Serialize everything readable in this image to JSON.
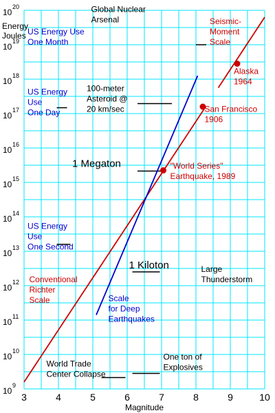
{
  "chart_data": {
    "type": "line",
    "xlabel": "Magnitude",
    "ylabel_lines": [
      "Energy",
      "Joules"
    ],
    "xlim": [
      3,
      10
    ],
    "y_log_exponent_range": [
      9,
      20
    ],
    "x_ticks": [
      "3",
      "4",
      "5",
      "6",
      "7",
      "8",
      "9",
      "10"
    ],
    "y_ticks": [
      {
        "base": "10",
        "exp": "9"
      },
      {
        "base": "10",
        "exp": "10"
      },
      {
        "base": "10",
        "exp": "11"
      },
      {
        "base": "10",
        "exp": "12"
      },
      {
        "base": "10",
        "exp": "13"
      },
      {
        "base": "10",
        "exp": "14"
      },
      {
        "base": "10",
        "exp": "15"
      },
      {
        "base": "10",
        "exp": "16"
      },
      {
        "base": "10",
        "exp": "17"
      },
      {
        "base": "10",
        "exp": "18"
      },
      {
        "base": "10",
        "exp": "19"
      },
      {
        "base": "10",
        "exp": "20"
      }
    ],
    "grid": true,
    "grid_color": "#00e5ff",
    "series": [
      {
        "color": "#cc0000",
        "points": [
          [
            3.0,
            9.2
          ],
          [
            8.25,
            17.15
          ]
        ]
      },
      {
        "color": "#cc0000",
        "points": [
          [
            8.65,
            17.75
          ],
          [
            10.0,
            19.8
          ]
        ]
      },
      {
        "color": "#0000cc",
        "points": [
          [
            5.1,
            11.15
          ],
          [
            8.05,
            18.1
          ]
        ]
      }
    ],
    "markers": [
      {
        "color": "#cc0000",
        "x": 7.05,
        "y": 15.35
      },
      {
        "color": "#cc0000",
        "x": 8.2,
        "y": 17.2
      },
      {
        "color": "#cc0000",
        "x": 9.2,
        "y": 18.45
      }
    ],
    "annotations": [
      {
        "lines": [
          "Global Nuclear",
          "Arsenal"
        ],
        "style": "black",
        "x": 4.95,
        "y": 19.95
      },
      {
        "lines": [
          "US Energy Use",
          "One Month"
        ],
        "style": "blue",
        "x": 3.1,
        "y": 19.3
      },
      {
        "lines": [
          "US Energy",
          "Use",
          "One Day"
        ],
        "style": "blue",
        "x": 3.1,
        "y": 17.55
      },
      {
        "lines": [
          "100-meter",
          "Asteroid @",
          "20 km/sec"
        ],
        "style": "black",
        "x": 4.82,
        "y": 17.65
      },
      {
        "lines": [
          "Seismic-",
          "Moment",
          "Scale"
        ],
        "style": "red",
        "x": 8.4,
        "y": 19.6
      },
      {
        "lines": [
          "Alaska",
          "1964"
        ],
        "style": "red",
        "x": 9.1,
        "y": 18.15
      },
      {
        "lines": [
          "San Francisco",
          "1906"
        ],
        "style": "red",
        "x": 8.25,
        "y": 17.05
      },
      {
        "lines": [
          "1 Megaton"
        ],
        "style": "big",
        "x": 4.4,
        "y": 15.45
      },
      {
        "lines": [
          "\"World Series\"",
          "Earthquake, 1989"
        ],
        "style": "red",
        "x": 7.25,
        "y": 15.4
      },
      {
        "lines": [
          "US Energy",
          "Use",
          "One Second"
        ],
        "style": "blue",
        "x": 3.1,
        "y": 13.65
      },
      {
        "lines": [
          "1 Kiloton"
        ],
        "style": "big",
        "x": 6.05,
        "y": 12.5
      },
      {
        "lines": [
          "Large",
          "Thunderstorm"
        ],
        "style": "black",
        "x": 8.15,
        "y": 12.4
      },
      {
        "lines": [
          "Conventional",
          "Richter",
          "Scale"
        ],
        "style": "red",
        "x": 3.15,
        "y": 12.1
      },
      {
        "lines": [
          "Scale",
          "for Deep",
          "Earthquakes"
        ],
        "style": "blue",
        "x": 5.45,
        "y": 11.55
      },
      {
        "lines": [
          "World Trade",
          "Center Collapse"
        ],
        "style": "black",
        "x": 3.65,
        "y": 9.65
      },
      {
        "lines": [
          "One ton of",
          "Explosives"
        ],
        "style": "black",
        "x": 7.05,
        "y": 9.85
      }
    ],
    "leader_lines": [
      {
        "x1": 8.0,
        "x2": 8.3,
        "y": 19.0
      },
      {
        "x1": 3.95,
        "x2": 4.25,
        "y": 17.17
      },
      {
        "x1": 6.3,
        "x2": 7.3,
        "y": 17.29
      },
      {
        "x1": 6.3,
        "x2": 7.05,
        "y": 15.33
      },
      {
        "x1": 3.95,
        "x2": 4.35,
        "y": 13.2
      },
      {
        "x1": 6.15,
        "x2": 6.95,
        "y": 12.4
      },
      {
        "x1": 5.25,
        "x2": 5.95,
        "y": 9.33
      },
      {
        "x1": 6.15,
        "x2": 6.95,
        "y": 9.45
      }
    ]
  }
}
